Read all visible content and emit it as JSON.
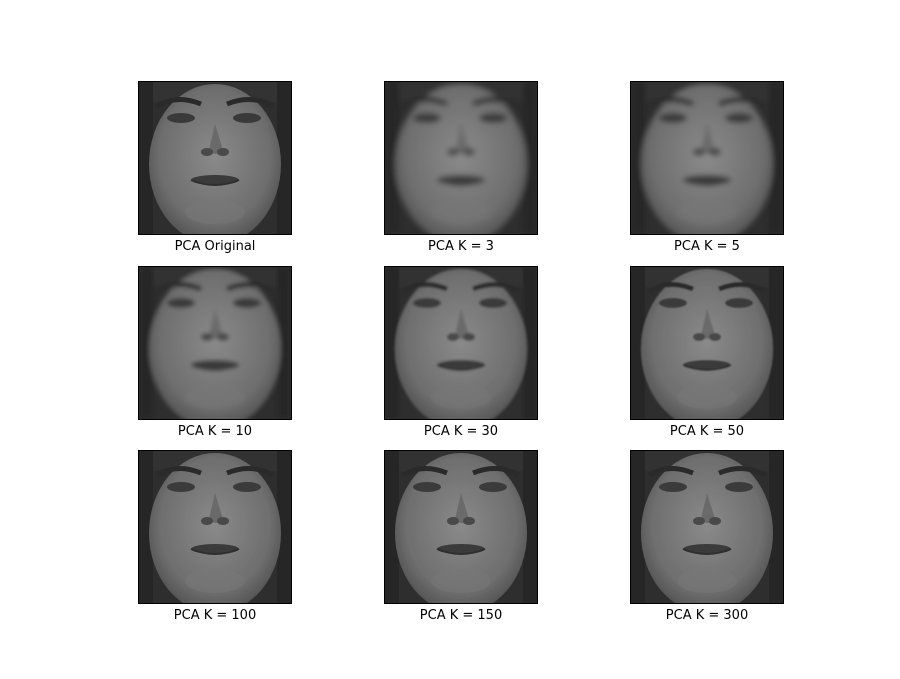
{
  "figure": {
    "panels": [
      {
        "label": "PCA Original",
        "k": null,
        "blur": 0.0
      },
      {
        "label": "PCA K = 3",
        "k": 3,
        "blur": 3.0
      },
      {
        "label": "PCA K = 5",
        "k": 5,
        "blur": 2.6
      },
      {
        "label": "PCA K = 10",
        "k": 10,
        "blur": 2.0
      },
      {
        "label": "PCA K = 30",
        "k": 30,
        "blur": 1.2
      },
      {
        "label": "PCA K = 50",
        "k": 50,
        "blur": 0.9
      },
      {
        "label": "PCA K = 100",
        "k": 100,
        "blur": 0.35
      },
      {
        "label": "PCA K = 150",
        "k": 150,
        "blur": 0.2
      },
      {
        "label": "PCA K = 300",
        "k": 300,
        "blur": 0.05
      }
    ]
  }
}
